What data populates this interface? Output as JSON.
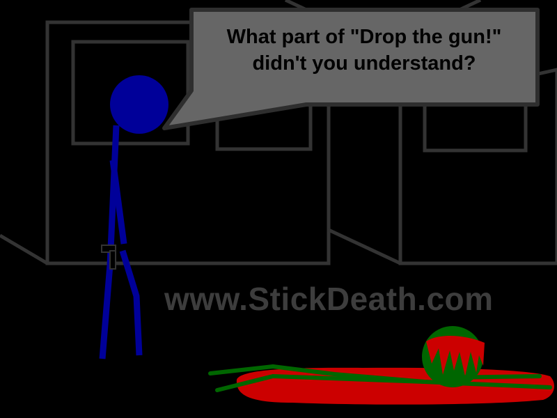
{
  "speech_bubble": {
    "text": "What part of \"Drop the gun!\"\ndidn't you understand?"
  },
  "watermark": {
    "text": "www.StickDeath.com"
  },
  "colors": {
    "background": "#000000",
    "walls": "#333333",
    "bubble_fill": "#666666",
    "bubble_border": "#2e2e2e",
    "stick_figure": "#000099",
    "blood": "#cc0000",
    "victim": "#006600"
  },
  "characters": {
    "standing": "blue-stick-figure",
    "lying": "green-stick-figure"
  },
  "props": [
    "handgun-icon"
  ]
}
